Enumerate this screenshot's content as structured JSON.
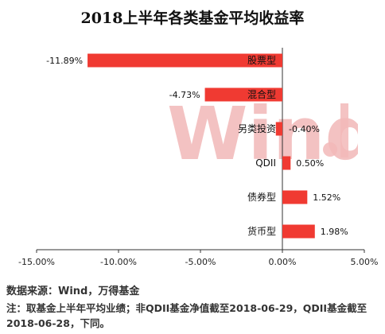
{
  "title": "2018上半年各类基金平均收益率",
  "source": "数据来源：Wind，万得基金",
  "note": "注：取基金上半年平均业绩；非QDII基金净值截至2018-06-29，QDII基金截至2018-06-28，下同。",
  "watermark": "Wind",
  "colors": {
    "bar": "#f03a32",
    "axis": "#333333",
    "watermark": "#f2b8b8"
  },
  "chart_data": {
    "type": "bar",
    "orientation": "horizontal",
    "categories": [
      "股票型",
      "混合型",
      "另类投资",
      "QDII",
      "债券型",
      "货币型"
    ],
    "values": [
      -11.89,
      -4.73,
      -0.4,
      0.5,
      1.52,
      1.98
    ],
    "value_labels": [
      "-11.89%",
      "-4.73%",
      "-0.40%",
      "0.50%",
      "1.52%",
      "1.98%"
    ],
    "xlim": [
      -15,
      5
    ],
    "xticks": [
      -15,
      -10,
      -5,
      0,
      5
    ],
    "xtick_labels": [
      "-15.00%",
      "-10.00%",
      "-5.00%",
      "0.00%",
      "5.00%"
    ],
    "grid": false,
    "legend": "none"
  }
}
